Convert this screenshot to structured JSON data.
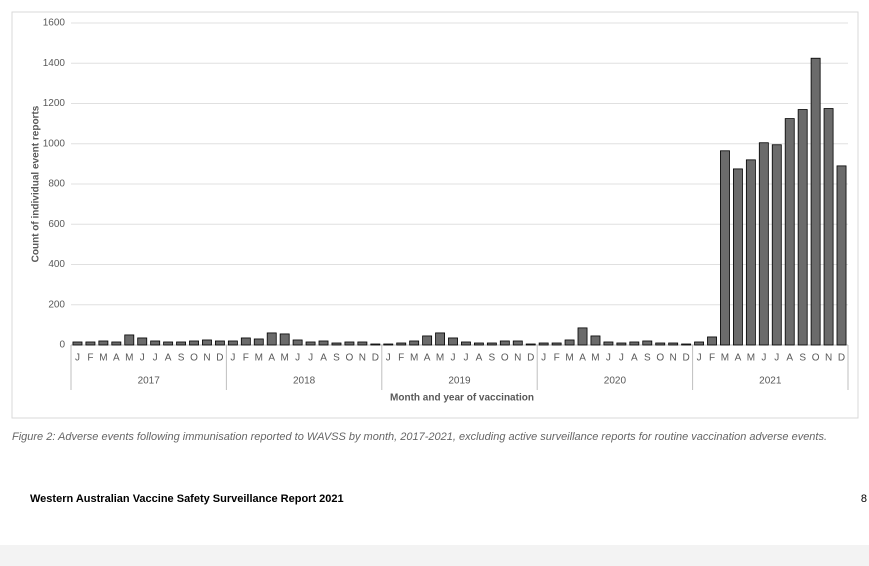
{
  "chart_data": {
    "type": "bar",
    "y_label": "Count of individual event reports",
    "x_label": "Month and year of vaccination",
    "categories": [
      "J",
      "F",
      "M",
      "A",
      "M",
      "J",
      "J",
      "A",
      "S",
      "O",
      "N",
      "D",
      "J",
      "F",
      "M",
      "A",
      "M",
      "J",
      "J",
      "A",
      "S",
      "O",
      "N",
      "D",
      "J",
      "F",
      "M",
      "A",
      "M",
      "J",
      "J",
      "A",
      "S",
      "O",
      "N",
      "D",
      "J",
      "F",
      "M",
      "A",
      "M",
      "J",
      "J",
      "A",
      "S",
      "O",
      "N",
      "D",
      "J",
      "F",
      "M",
      "A",
      "M",
      "J",
      "J",
      "A",
      "S",
      "O",
      "N",
      "D"
    ],
    "years": [
      "2017",
      "2018",
      "2019",
      "2020",
      "2021"
    ],
    "values": [
      15,
      15,
      20,
      15,
      50,
      35,
      20,
      15,
      15,
      20,
      25,
      20,
      20,
      35,
      30,
      60,
      55,
      25,
      15,
      20,
      10,
      15,
      15,
      5,
      5,
      10,
      20,
      45,
      60,
      35,
      15,
      10,
      10,
      20,
      20,
      5,
      10,
      10,
      25,
      85,
      45,
      15,
      10,
      15,
      20,
      10,
      10,
      5,
      15,
      40,
      965,
      875,
      920,
      1005,
      995,
      1125,
      1170,
      1425,
      1175,
      890
    ],
    "color": "#6b6b6b",
    "ylim": [
      0,
      1600
    ],
    "yticks": [
      0,
      200,
      400,
      600,
      800,
      1000,
      1200,
      1400,
      1600
    ],
    "grid": true
  },
  "caption": "Figure 2: Adverse events following immunisation reported to WAVSS by month, 2017-2021, excluding active surveillance reports for routine vaccination adverse events.",
  "footer": {
    "title": "Western Australian Vaccine Safety Surveillance Report 2021",
    "page": "8"
  }
}
